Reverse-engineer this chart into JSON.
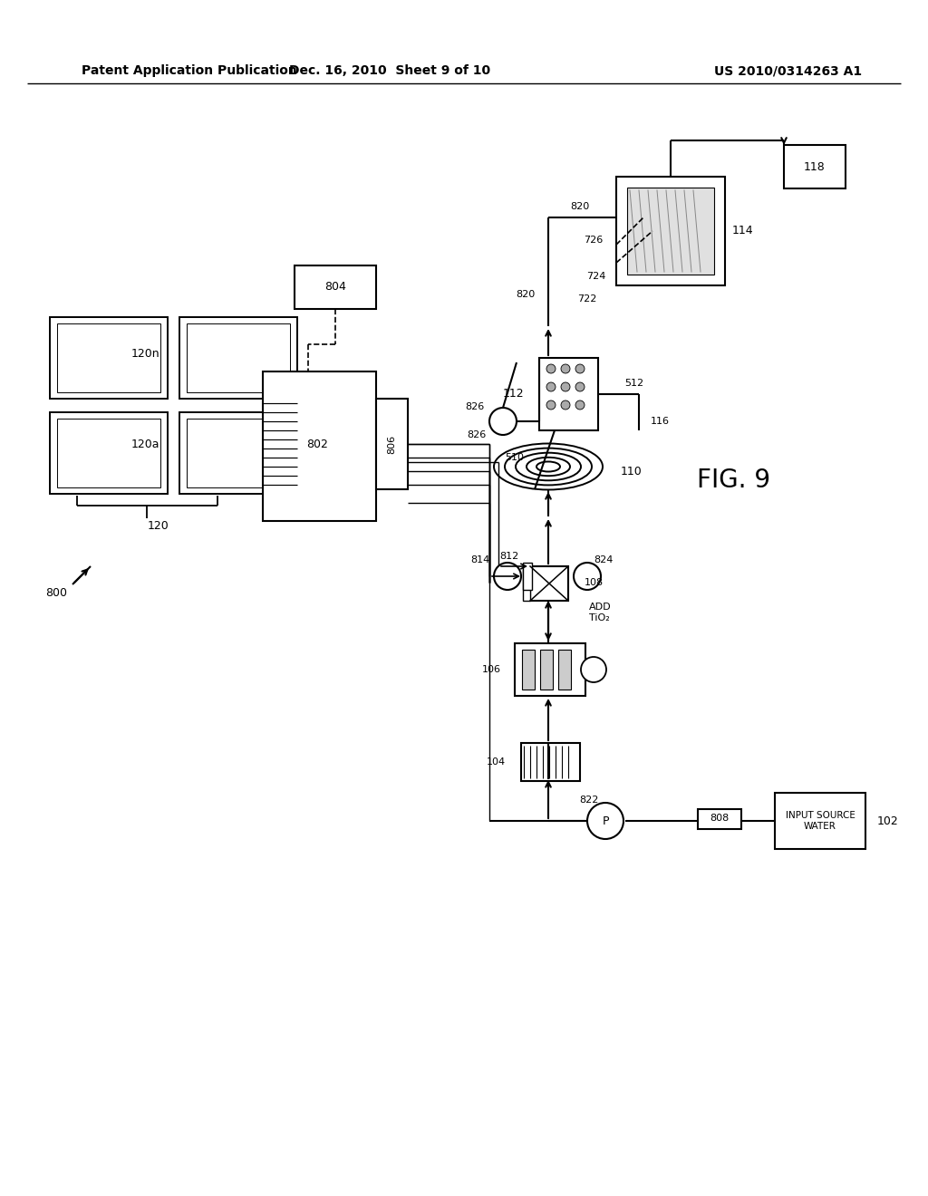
{
  "bg": "#ffffff",
  "lc": "#000000",
  "header_left": "Patent Application Publication",
  "header_mid": "Dec. 16, 2010  Sheet 9 of 10",
  "header_right": "US 2010/0314263 A1",
  "fig_label": "FIG. 9"
}
